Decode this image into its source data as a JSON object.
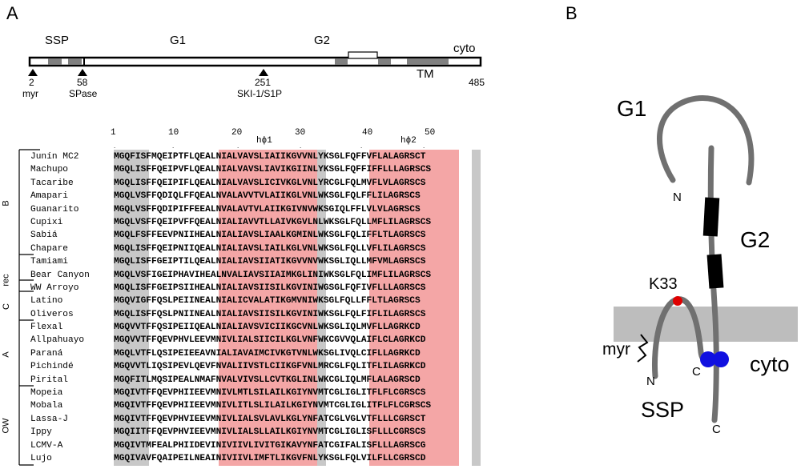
{
  "panel_a": {
    "letter": "A",
    "segments": {
      "ssp": "SSP",
      "g1": "G1",
      "g2": "G2",
      "cyto": "cyto",
      "tm": "TM"
    },
    "sites": [
      {
        "num": "2",
        "label": "myr"
      },
      {
        "num": "58",
        "label": "SPase"
      },
      {
        "num": "251",
        "label": "SKI-1/S1P"
      },
      {
        "num": "485",
        "label": ""
      }
    ],
    "ruler": [
      "1",
      "10",
      "20",
      "30",
      "40",
      "50"
    ],
    "regions": {
      "h1": "hϕ1",
      "h2": "hϕ2"
    },
    "groups": [
      "B",
      "rec",
      "C",
      "A",
      "OW"
    ],
    "sequences": [
      {
        "name": "Junín MC2",
        "b": "MGQFIS",
        "r": "FMQEIPTFLQEALNIALVAVSLIAIIKGVVNLYKSGLFQFFVFLALAGRSCT"
      },
      {
        "name": "Machupo",
        "b": "MGQLIS",
        "r": "FFQEIPVFLQEALNIALVAVSLIAVIKGIINLYKSGLFQFFIFFLLLAGRSCS"
      },
      {
        "name": "Tacaribe",
        "b": "MGQLIS",
        "r": "FFQEIPIFLQEALNIALVAVSLICIVKGLVNLYRCGLFQLMVFLVLAGRSCS"
      },
      {
        "name": "Amapari",
        "b": "MGQLVS",
        "r": "FFQDIQLFFQEALNVALAVVTVLAIIKGLVNLWKSGLFQLFFLILAGRSCS"
      },
      {
        "name": "Guanarito",
        "b": "MGQLVS",
        "r": "FFQDIPIFFEEALNVALAVTVLAIIKGIVNVWKSGIQLFFLVLVLAGRSCS"
      },
      {
        "name": "Cupixi",
        "b": "MGQLVS",
        "r": "FFQEIPVFFQEALNIALIAVVTLLAIVKGVLNLWKSGLFQLLMFLILAGRSCS"
      },
      {
        "name": "Sabiá",
        "b": "MGQLFS",
        "r": "FFEEVPNIIHEALNIALIAVSLIAALKGMINLWKSGLFQLIFFLTLAGRSCS"
      },
      {
        "name": "Chapare",
        "b": "MGQLIS",
        "r": "FFQEIPNIIQEALNIALIAVSLIAILKGLVNLWKSGLFQLLVFLILAGRSCS"
      },
      {
        "name": "Tamiami",
        "b": "MGQLIS",
        "r": "FFGEIPTILQEALNIALIAVSIIATIKGVVNVWKSGLIQLLMFVMLAGRSCS"
      },
      {
        "name": "Bear Canyon",
        "b": "MGQLVS",
        "r": "FIGEIPHAVIHEALNVALIAVSIIAIMKGLINIWKSGLFQLIMFLILAGRSCS"
      },
      {
        "name": "WW Arroyo",
        "b": "MGQLIS",
        "r": "FFGEIPSIIHEALNIALIAVSIISILKGVINIWGSGLFQFIVFLLLAGRSCS"
      },
      {
        "name": "Latino",
        "b": "MGQVIG",
        "r": "FFQSLPEIINEALNIALICVALATIKGMVNIWKSGLFQLLFFLTLAGRSCS"
      },
      {
        "name": "Oliveros",
        "b": "MGQLIS",
        "r": "FFQSLPNIINEALNIALIAVSIISILKGVINIWKSGLFQLFIFLILAGRSCS"
      },
      {
        "name": "Flexal",
        "b": "MGQVVT",
        "r": "FFQSIPEIIQEALNIALIAVSVICIIKGCVNLWKSGLIQLMVFLLAGRKCD"
      },
      {
        "name": "Allpahuayo",
        "b": "MGQVVT",
        "r": "FFQEVPHVLEEVMNIVLIALSIICILKGLVNFWKCGVVQLAIFLCLAGRKCD"
      },
      {
        "name": "Paraná",
        "b": "MGQLVT",
        "r": "FLQSIPEIEEAVNIALIAVAIMCIVKGTVNLWKSGLIVQLCIFLLAGRKCD"
      },
      {
        "name": "Pichindé",
        "b": "MGQVVT",
        "r": "LIQSIPEVLQEVFNVALIIVSTLCIIKGFVNLMRCGLFQLITFLILAGRKCD"
      },
      {
        "name": "Pirital",
        "b": "MGQFIT",
        "r": "LMQSIPEALNMAFNVALVIVSLLCVTKGLINLWKCGLIQLMFLALAGRSCD"
      },
      {
        "name": "Mopeia",
        "b": "MGQIVT",
        "r": "FFQEVPHIIEEVMNIVLMTLSILAILKGIYNVMTCGLIGLITFLFLCGRSCS"
      },
      {
        "name": "Mobala",
        "b": "MGQIVT",
        "r": "FFQEVPHIIEEVMNIVLITLSLILAILKGIYNVMTCGLIGLITFLFLCGRSCS"
      },
      {
        "name": "Lassa-J",
        "b": "MGQIVT",
        "r": "FFQEVPHVIEEVMNIVLIALSVLAVLKGLYNFATCGLVGLVTFLLLCGRSCT"
      },
      {
        "name": "Ippy",
        "b": "MGQIIT",
        "r": "FFQEVPHVIEEVMNIVLIALSLLAILKGIYNVMTCGLIGLISFLLLCGRSCS"
      },
      {
        "name": "LCMV-A",
        "b": "MGQIVT",
        "r": "MFEALPHIIDEVINIVIIVLIVITGIKAVYNFATCGIFALISFLLLAGRSCG"
      },
      {
        "name": "Lujo",
        "b": "MGQIVA",
        "r": "VFQAIPEILNEAINIVIIVLIMFTLIKGVFNLYKSGLFQLVILFLLCGRSCD"
      }
    ]
  },
  "panel_b": {
    "letter": "B",
    "labels": {
      "g1": "G1",
      "g2": "G2",
      "k33": "K33",
      "myr": "myr",
      "ssp": "SSP",
      "cyto": "cyto",
      "n1": "N",
      "n2": "N",
      "c1": "C",
      "c2": "C"
    },
    "colors": {
      "strand": "#707070",
      "tm_block": "#000000",
      "membrane": "#bdbdbd",
      "lysine": "#e00000",
      "zinc": "#1010e0"
    }
  },
  "colors": {
    "hydrophobic": "#f4a6a6",
    "conserved": "#c8c8c8",
    "domain": "#808080"
  }
}
